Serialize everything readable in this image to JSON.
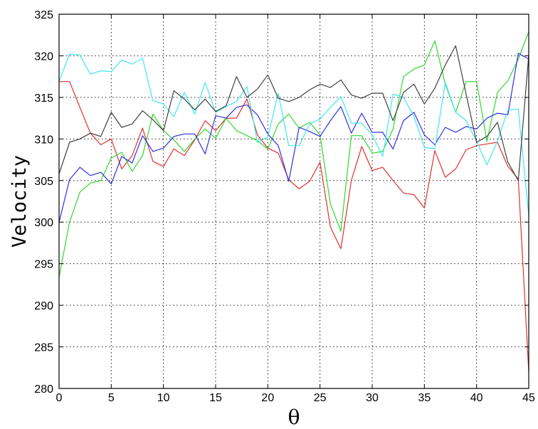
{
  "chart_data": {
    "type": "line",
    "title": "",
    "xlabel": "θ",
    "ylabel": "Velocity",
    "xlim": [
      0,
      45
    ],
    "ylim": [
      280,
      325
    ],
    "xticks": [
      0,
      5,
      10,
      15,
      20,
      25,
      30,
      35,
      40,
      45
    ],
    "yticks": [
      280,
      285,
      290,
      295,
      300,
      305,
      310,
      315,
      320,
      325
    ],
    "grid": true,
    "legend": "none",
    "x": [
      0,
      1,
      2,
      3,
      4,
      5,
      6,
      7,
      8,
      9,
      10,
      11,
      12,
      13,
      14,
      15,
      16,
      17,
      18,
      19,
      20,
      21,
      22,
      23,
      24,
      25,
      26,
      27,
      28,
      29,
      30,
      31,
      32,
      33,
      34,
      35,
      36,
      37,
      38,
      39,
      40,
      41,
      42,
      43,
      44,
      45
    ],
    "series": [
      {
        "color": "#e03030",
        "values": [
          316.9,
          316.9,
          313.8,
          310.7,
          309.3,
          310.0,
          306.4,
          308.0,
          311.3,
          307.3,
          306.7,
          308.8,
          308.0,
          309.9,
          312.2,
          311.0,
          312.5,
          312.5,
          314.8,
          310.5,
          308.9,
          308.3,
          305.1,
          304.0,
          304.9,
          307.2,
          299.4,
          296.8,
          305.0,
          309.1,
          306.2,
          306.6,
          305.0,
          303.5,
          303.3,
          301.7,
          308.6,
          305.4,
          306.4,
          308.7,
          309.2,
          309.4,
          309.6,
          306.7,
          305.2,
          282.0
        ]
      },
      {
        "color": "#30d830",
        "values": [
          293.4,
          300.0,
          303.6,
          304.7,
          305.0,
          307.7,
          308.4,
          306.1,
          308.0,
          313.0,
          311.0,
          309.9,
          308.5,
          310.0,
          311.2,
          310.1,
          312.5,
          311.0,
          310.4,
          309.8,
          308.8,
          311.8,
          313.0,
          311.3,
          312.0,
          310.5,
          302.2,
          298.9,
          310.4,
          310.4,
          308.3,
          308.5,
          311.2,
          317.5,
          318.4,
          318.9,
          321.8,
          316.6,
          313.2,
          316.9,
          316.9,
          309.7,
          315.6,
          317.0,
          319.6,
          322.9
        ]
      },
      {
        "color": "#3030e0",
        "values": [
          300.0,
          305.1,
          306.6,
          305.6,
          306.0,
          304.6,
          307.9,
          307.1,
          310.4,
          308.5,
          308.9,
          310.3,
          310.6,
          310.6,
          308.2,
          312.8,
          312.5,
          313.8,
          314.1,
          312.9,
          310.6,
          309.2,
          304.9,
          311.4,
          310.9,
          310.3,
          312.2,
          313.9,
          310.7,
          313.1,
          310.8,
          310.8,
          308.8,
          312.2,
          313.2,
          310.5,
          309.3,
          311.4,
          310.8,
          311.5,
          311.2,
          312.5,
          313.1,
          312.9,
          320.3,
          319.6
        ]
      },
      {
        "color": "#40e8f0",
        "values": [
          316.9,
          320.2,
          320.1,
          317.8,
          318.2,
          318.1,
          319.5,
          319.0,
          319.7,
          314.6,
          314.2,
          312.7,
          315.6,
          313.0,
          316.8,
          313.2,
          313.9,
          314.5,
          316.3,
          309.6,
          310.2,
          315.5,
          309.2,
          309.2,
          311.8,
          312.4,
          313.8,
          315.1,
          311.9,
          311.9,
          310.5,
          307.9,
          315.4,
          315.0,
          312.7,
          309.0,
          308.8,
          316.8,
          313.2,
          312.2,
          309.7,
          306.9,
          309.7,
          313.5,
          313.6,
          300.8
        ]
      },
      {
        "color": "#404040",
        "values": [
          305.8,
          309.6,
          310.0,
          310.7,
          310.3,
          313.2,
          311.4,
          311.8,
          313.4,
          312.3,
          311.0,
          315.8,
          314.8,
          313.5,
          314.8,
          313.3,
          314.0,
          317.5,
          315.0,
          316.0,
          317.7,
          314.9,
          314.5,
          315.0,
          315.9,
          316.6,
          316.2,
          317.1,
          315.3,
          314.9,
          315.5,
          315.5,
          312.2,
          315.6,
          316.6,
          314.2,
          316.1,
          318.9,
          321.2,
          315.4,
          309.6,
          310.3,
          312.0,
          307.2,
          305.0,
          320.1
        ]
      }
    ]
  }
}
